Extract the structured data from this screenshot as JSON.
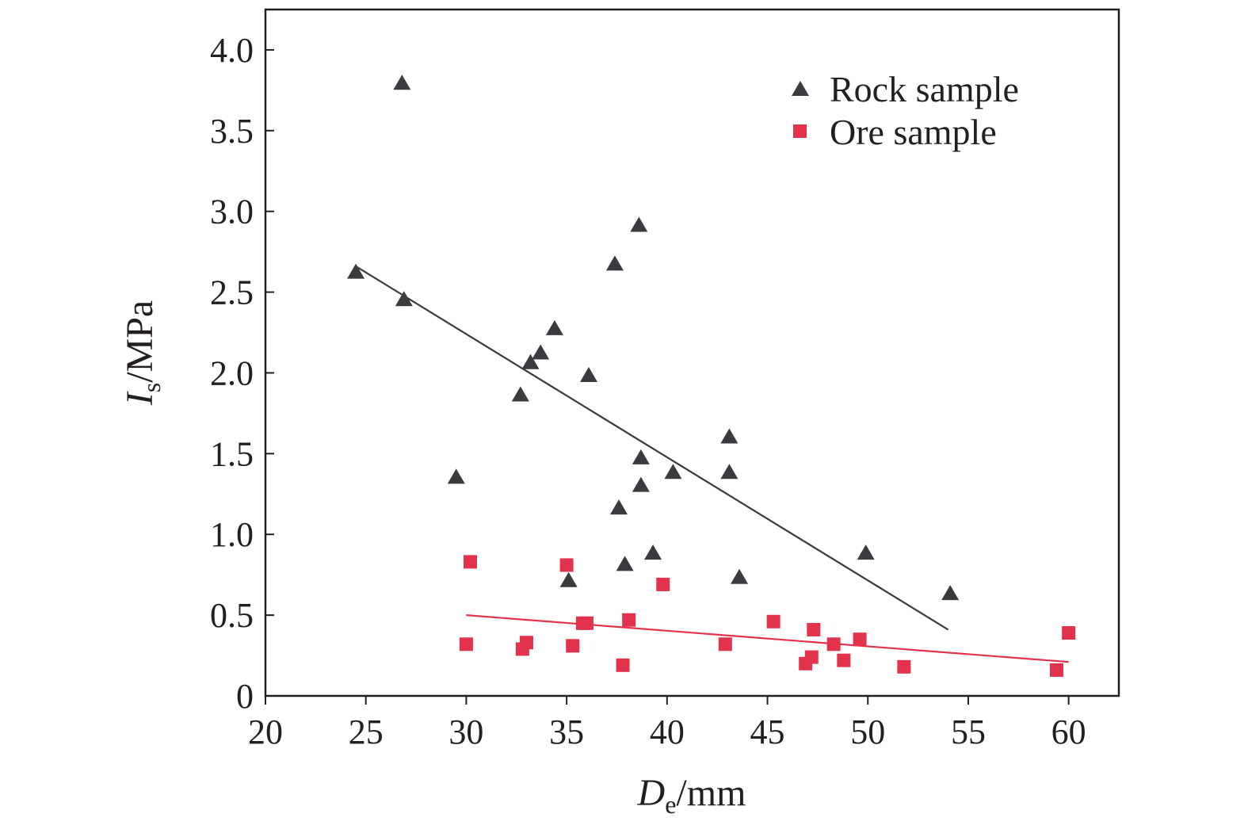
{
  "chart_data": {
    "type": "scatter",
    "title": "",
    "xlabel": {
      "main": "D",
      "sub": "e",
      "unit": "/mm"
    },
    "ylabel": {
      "main": "I",
      "sub": "s",
      "unit": "/MPa"
    },
    "xlim": [
      20,
      62.5
    ],
    "ylim": [
      0,
      4.25
    ],
    "xticks": [
      20,
      25,
      30,
      35,
      40,
      45,
      50,
      55,
      60
    ],
    "xtick_labels": [
      "20",
      "25",
      "30",
      "35",
      "40",
      "45",
      "50",
      "55",
      "60"
    ],
    "yticks": [
      0,
      0.5,
      1.0,
      1.5,
      2.0,
      2.5,
      3.0,
      3.5,
      4.0
    ],
    "ytick_labels": [
      "0",
      "0.5",
      "1.0",
      "1.5",
      "2.0",
      "2.5",
      "3.0",
      "3.5",
      "4.0"
    ],
    "grid": false,
    "legend_position": "top-right",
    "series": [
      {
        "name": "Rock sample",
        "marker": "triangle",
        "color": "#3a3b3f",
        "points": [
          [
            24.5,
            2.63
          ],
          [
            26.8,
            3.8
          ],
          [
            26.9,
            2.46
          ],
          [
            29.5,
            1.36
          ],
          [
            32.7,
            1.87
          ],
          [
            33.2,
            2.07
          ],
          [
            33.7,
            2.13
          ],
          [
            34.4,
            2.28
          ],
          [
            35.1,
            0.72
          ],
          [
            36.1,
            1.99
          ],
          [
            37.4,
            2.68
          ],
          [
            37.6,
            1.17
          ],
          [
            37.9,
            0.82
          ],
          [
            38.6,
            2.92
          ],
          [
            38.7,
            1.48
          ],
          [
            38.7,
            1.31
          ],
          [
            39.3,
            0.89
          ],
          [
            40.3,
            1.39
          ],
          [
            43.1,
            1.61
          ],
          [
            43.1,
            1.39
          ],
          [
            43.6,
            0.74
          ],
          [
            49.9,
            0.89
          ],
          [
            54.1,
            0.64
          ]
        ],
        "trend": [
          [
            24.5,
            2.66
          ],
          [
            54.0,
            0.41
          ]
        ]
      },
      {
        "name": "Ore sample",
        "marker": "square",
        "color": "#e3324b",
        "points": [
          [
            30.0,
            0.32
          ],
          [
            30.2,
            0.83
          ],
          [
            32.8,
            0.29
          ],
          [
            33.0,
            0.33
          ],
          [
            35.0,
            0.81
          ],
          [
            35.3,
            0.31
          ],
          [
            35.8,
            0.45
          ],
          [
            36.0,
            0.45
          ],
          [
            37.8,
            0.19
          ],
          [
            38.1,
            0.47
          ],
          [
            39.8,
            0.69
          ],
          [
            42.9,
            0.32
          ],
          [
            45.3,
            0.46
          ],
          [
            46.9,
            0.2
          ],
          [
            47.2,
            0.24
          ],
          [
            47.3,
            0.41
          ],
          [
            48.3,
            0.32
          ],
          [
            48.8,
            0.22
          ],
          [
            49.6,
            0.35
          ],
          [
            51.8,
            0.18
          ],
          [
            59.4,
            0.16
          ],
          [
            60.0,
            0.39
          ]
        ],
        "trend": [
          [
            30.0,
            0.5
          ],
          [
            60.0,
            0.21
          ]
        ]
      }
    ]
  }
}
